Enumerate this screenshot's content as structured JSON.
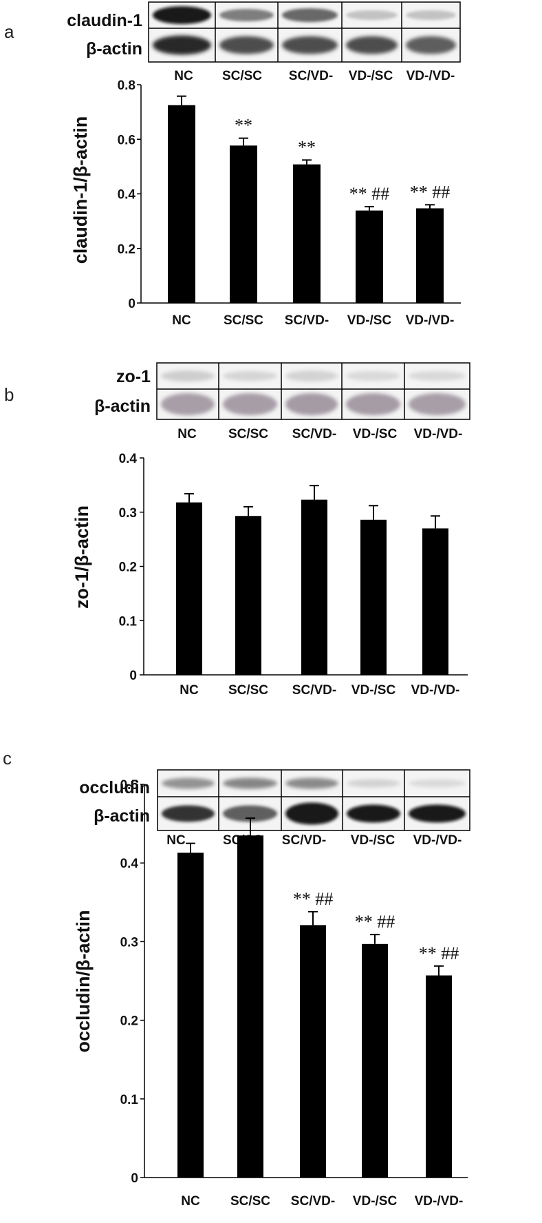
{
  "chart_data": [
    {
      "type": "bar",
      "panel_letter": "a",
      "blot": {
        "rows": [
          "claudin-1",
          "β-actin"
        ],
        "lanes": [
          "NC",
          "SC/SC",
          "SC/VD-",
          "VD-/SC",
          "VD-/VD-"
        ]
      },
      "categories": [
        "NC",
        "SC/SC",
        "SC/VD-",
        "VD-/SC",
        "VD-/VD-"
      ],
      "values": [
        0.725,
        0.577,
        0.508,
        0.339,
        0.347
      ],
      "errors": [
        0.033,
        0.027,
        0.016,
        0.014,
        0.013
      ],
      "annotations": [
        "",
        "**",
        "**",
        "** ##",
        "** ##"
      ],
      "ylabel": "claudin-1/β-actin",
      "ylim": [
        0,
        0.8
      ],
      "yticks": [
        0,
        0.2,
        0.4,
        0.6,
        0.8
      ],
      "ytick_labels": [
        "0",
        "0.2",
        "0.4",
        "0.6",
        "0.8"
      ],
      "bar_color": "#000000",
      "grid": false
    },
    {
      "type": "bar",
      "panel_letter": "b",
      "blot": {
        "rows": [
          "zo-1",
          "β-actin"
        ],
        "lanes": [
          "NC",
          "SC/SC",
          "SC/VD-",
          "VD-/SC",
          "VD-/VD-"
        ]
      },
      "categories": [
        "NC",
        "SC/SC",
        "SC/VD-",
        "VD-/SC",
        "VD-/VD-"
      ],
      "values": [
        0.318,
        0.293,
        0.323,
        0.286,
        0.27
      ],
      "errors": [
        0.016,
        0.017,
        0.026,
        0.026,
        0.023
      ],
      "annotations": [
        "",
        "",
        "",
        "",
        ""
      ],
      "ylabel": "zo-1/β-actin",
      "ylim": [
        0,
        0.4
      ],
      "yticks": [
        0,
        0.1,
        0.2,
        0.3,
        0.4
      ],
      "ytick_labels": [
        "0",
        "0.1",
        "0.2",
        "0.3",
        "0.4"
      ],
      "bar_color": "#000000",
      "grid": false
    },
    {
      "type": "bar",
      "panel_letter": "c",
      "blot": {
        "rows": [
          "occludin",
          "β-actin"
        ],
        "lanes": [
          "NC",
          "SC/SC",
          "SC/VD-",
          "VD-/SC",
          "VD-/VD-"
        ]
      },
      "categories": [
        "NC",
        "SC/SC",
        "SC/VD-",
        "VD-/SC",
        "VD-/VD-"
      ],
      "values": [
        0.413,
        0.435,
        0.321,
        0.297,
        0.257
      ],
      "errors": [
        0.012,
        0.022,
        0.017,
        0.012,
        0.012
      ],
      "annotations": [
        "",
        "",
        "** ##",
        "** ##",
        "** ##"
      ],
      "ylabel": "occludin/β-actin",
      "ylim": [
        0,
        0.5
      ],
      "yticks": [
        0,
        0.1,
        0.2,
        0.3,
        0.4,
        0.5
      ],
      "ytick_labels": [
        "0",
        "0.1",
        "0.2",
        "0.3",
        "0.4",
        "0.5"
      ],
      "bar_color": "#000000",
      "grid": false
    }
  ]
}
